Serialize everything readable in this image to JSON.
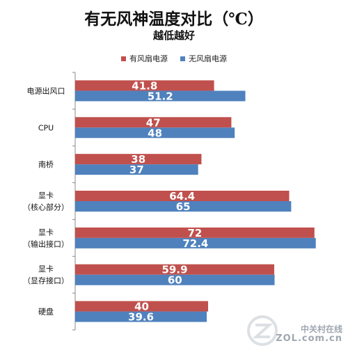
{
  "chart_data": {
    "type": "bar",
    "orientation": "horizontal",
    "title": "有无风神温度对比（℃）",
    "subtitle": "越低越好",
    "categories": [
      [
        "电源出风口"
      ],
      [
        "CPU"
      ],
      [
        "南桥"
      ],
      [
        "显卡",
        "（核心部分）"
      ],
      [
        "显卡",
        "（输出接口）"
      ],
      [
        "显卡",
        "（显存接口）"
      ],
      [
        "硬盘"
      ]
    ],
    "series": [
      {
        "name": "有风扇电源",
        "color": "#c0504d",
        "values": [
          41.8,
          47,
          38,
          64.4,
          72,
          59.9,
          40
        ]
      },
      {
        "name": "无风扇电源",
        "color": "#4f81bd",
        "values": [
          51.2,
          48,
          37,
          65,
          72.4,
          60,
          39.6
        ]
      }
    ],
    "xlim": [
      0,
      80
    ],
    "grid": false,
    "legend_position": "top"
  },
  "watermark": {
    "brand": "中关村在线",
    "site": "ZOL.com.cn"
  }
}
